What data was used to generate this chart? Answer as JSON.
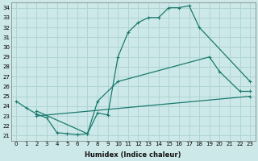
{
  "xlabel": "Humidex (Indice chaleur)",
  "bg_color": "#cce8e8",
  "grid_color": "#b0d4d4",
  "line_color": "#1a7a6e",
  "xlim": [
    -0.5,
    23.5
  ],
  "ylim": [
    20.5,
    34.5
  ],
  "xticks": [
    0,
    1,
    2,
    3,
    4,
    5,
    6,
    7,
    8,
    9,
    10,
    11,
    12,
    13,
    14,
    15,
    16,
    17,
    18,
    19,
    20,
    21,
    22,
    23
  ],
  "yticks": [
    21,
    22,
    23,
    24,
    25,
    26,
    27,
    28,
    29,
    30,
    31,
    32,
    33,
    34
  ],
  "line1_x": [
    0,
    1,
    2,
    3,
    4,
    5,
    6,
    7,
    8,
    9,
    10,
    11,
    12,
    13,
    14,
    15,
    16,
    17,
    18,
    23
  ],
  "line1_y": [
    24.5,
    23.8,
    23.2,
    22.8,
    21.3,
    21.2,
    21.1,
    21.2,
    23.3,
    23.1,
    29.0,
    31.5,
    32.5,
    33.0,
    33.0,
    34.0,
    34.0,
    34.2,
    32.0,
    26.5
  ],
  "line2_x": [
    2,
    7,
    8,
    10,
    19,
    20,
    22,
    23
  ],
  "line2_y": [
    23.5,
    21.2,
    24.5,
    26.5,
    29.0,
    27.5,
    25.5,
    25.5
  ],
  "line3_x": [
    2,
    23
  ],
  "line3_y": [
    23.0,
    25.0
  ]
}
